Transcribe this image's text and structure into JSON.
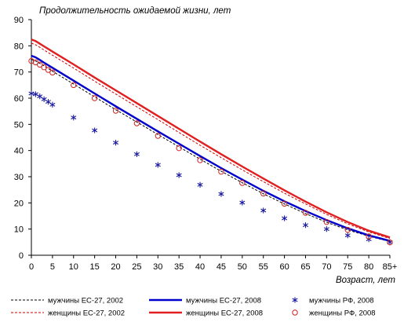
{
  "chart_data": {
    "type": "line",
    "title": "",
    "ylabel": "Продолжительность ожидаемой жизни, лет",
    "xlabel": "Возраст, лет",
    "ylim": [
      0,
      90
    ],
    "y_ticks": [
      0,
      10,
      20,
      30,
      40,
      50,
      60,
      70,
      80,
      90
    ],
    "x": [
      0,
      1,
      2,
      3,
      4,
      5,
      10,
      15,
      20,
      25,
      30,
      35,
      40,
      45,
      50,
      55,
      60,
      65,
      70,
      75,
      80,
      85
    ],
    "x_tick_labels": [
      "0",
      "5",
      "10",
      "15",
      "20",
      "25",
      "30",
      "35",
      "40",
      "45",
      "50",
      "55",
      "60",
      "65",
      "70",
      "75",
      "80",
      "85+"
    ],
    "legend_position": "bottom",
    "grid": false,
    "series": [
      {
        "name": "мужчины ЕС-27, 2002",
        "style": "dashed",
        "color": "#000000",
        "values": [
          74.8,
          74.2,
          73.3,
          72.3,
          71.3,
          70.3,
          65.4,
          60.5,
          55.6,
          50.9,
          46.1,
          41.4,
          36.7,
          32.1,
          27.7,
          23.5,
          19.6,
          15.9,
          12.6,
          9.7,
          7.3,
          5.2
        ]
      },
      {
        "name": "мужчины ЕС-27, 2008",
        "style": "solid",
        "color": "#0000cc",
        "values": [
          76.2,
          75.6,
          74.6,
          73.6,
          72.6,
          71.6,
          66.7,
          61.8,
          56.9,
          52.1,
          47.3,
          42.6,
          37.9,
          33.3,
          28.9,
          24.6,
          20.6,
          16.9,
          13.4,
          10.3,
          7.6,
          5.5
        ]
      },
      {
        "name": "мужчины РФ, 2008",
        "style": "markers-asterisk",
        "color": "#1a1aa0",
        "values": [
          61.8,
          61.5,
          60.7,
          59.6,
          58.6,
          57.5,
          52.6,
          47.7,
          43.0,
          38.6,
          34.5,
          30.6,
          26.9,
          23.4,
          20.1,
          17.1,
          14.1,
          11.5,
          10.0,
          7.6,
          6.1,
          5.0
        ]
      },
      {
        "name": "женщины ЕС-27, 2002",
        "style": "dashed",
        "color": "#cc0000",
        "values": [
          81.0,
          80.4,
          79.4,
          78.4,
          77.4,
          76.4,
          71.5,
          66.5,
          61.6,
          56.7,
          51.8,
          46.9,
          42.0,
          37.3,
          32.6,
          28.1,
          23.7,
          19.6,
          15.6,
          12.0,
          8.9,
          6.4
        ]
      },
      {
        "name": "женщины ЕС-27, 2008",
        "style": "solid",
        "color": "#e02020",
        "values": [
          82.4,
          81.8,
          80.8,
          79.8,
          78.8,
          77.8,
          72.9,
          67.9,
          63.0,
          58.1,
          53.2,
          48.3,
          43.4,
          38.6,
          33.9,
          29.3,
          24.8,
          20.5,
          16.4,
          12.7,
          9.4,
          6.8
        ]
      },
      {
        "name": "женщины РФ, 2008",
        "style": "markers-circle",
        "color": "#cc2222",
        "values": [
          74.2,
          73.7,
          72.8,
          71.8,
          70.8,
          69.8,
          65.0,
          60.0,
          55.2,
          50.4,
          45.6,
          40.9,
          36.3,
          31.9,
          27.6,
          23.6,
          19.7,
          16.2,
          12.7,
          9.7,
          7.2,
          4.9
        ]
      }
    ]
  }
}
